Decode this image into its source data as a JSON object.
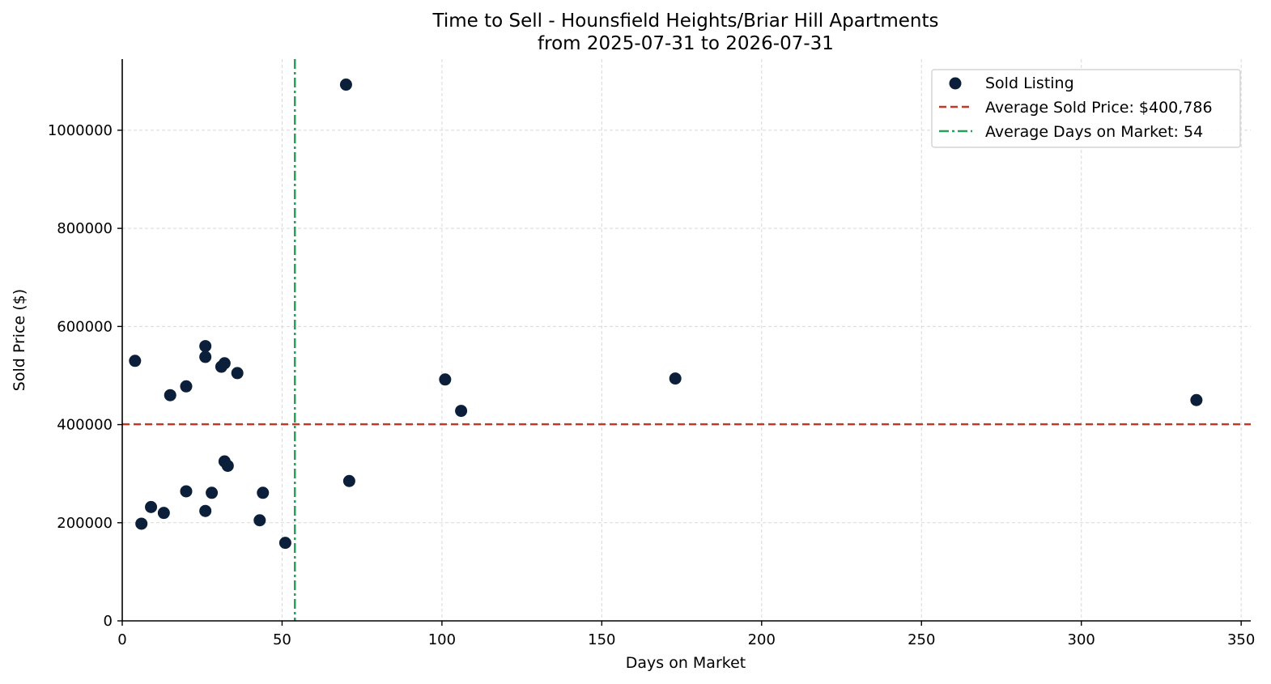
{
  "chart_data": {
    "type": "scatter",
    "title": "Time to Sell - Hounsfield Heights/Briar Hill Apartments",
    "subtitle": "from 2025-07-31 to 2026-07-31",
    "xlabel": "Days on Market",
    "ylabel": "Sold Price ($)",
    "xlim": [
      0,
      353
    ],
    "ylim": [
      0,
      1145000
    ],
    "x_ticks": [
      0,
      50,
      100,
      150,
      200,
      250,
      300,
      350
    ],
    "y_ticks": [
      0,
      200000,
      400000,
      600000,
      800000,
      1000000
    ],
    "grid": true,
    "legend_position": "top-right",
    "colors": {
      "points": "#0b1f3a",
      "avg_price_line": "#c0392b",
      "avg_days_line": "#27a05a"
    },
    "series": [
      {
        "name": "Sold Listing",
        "points": [
          {
            "x": 4,
            "y": 530000
          },
          {
            "x": 6,
            "y": 198000
          },
          {
            "x": 9,
            "y": 232000
          },
          {
            "x": 13,
            "y": 220000
          },
          {
            "x": 15,
            "y": 460000
          },
          {
            "x": 20,
            "y": 478000
          },
          {
            "x": 20,
            "y": 264000
          },
          {
            "x": 26,
            "y": 560000
          },
          {
            "x": 26,
            "y": 538000
          },
          {
            "x": 26,
            "y": 224000
          },
          {
            "x": 28,
            "y": 261000
          },
          {
            "x": 31,
            "y": 518000
          },
          {
            "x": 32,
            "y": 525000
          },
          {
            "x": 32,
            "y": 325000
          },
          {
            "x": 33,
            "y": 316000
          },
          {
            "x": 36,
            "y": 505000
          },
          {
            "x": 43,
            "y": 205000
          },
          {
            "x": 44,
            "y": 261000
          },
          {
            "x": 51,
            "y": 159000
          },
          {
            "x": 70,
            "y": 1093000
          },
          {
            "x": 71,
            "y": 285000
          },
          {
            "x": 101,
            "y": 492000
          },
          {
            "x": 106,
            "y": 428000
          },
          {
            "x": 173,
            "y": 494000
          },
          {
            "x": 336,
            "y": 450000
          }
        ]
      }
    ],
    "reference_lines": [
      {
        "orientation": "horizontal",
        "value": 400786,
        "name": "Average Sold Price: $400,786",
        "style": "dashed"
      },
      {
        "orientation": "vertical",
        "value": 54,
        "name": "Average Days on Market: 54",
        "style": "dashdot"
      }
    ]
  }
}
